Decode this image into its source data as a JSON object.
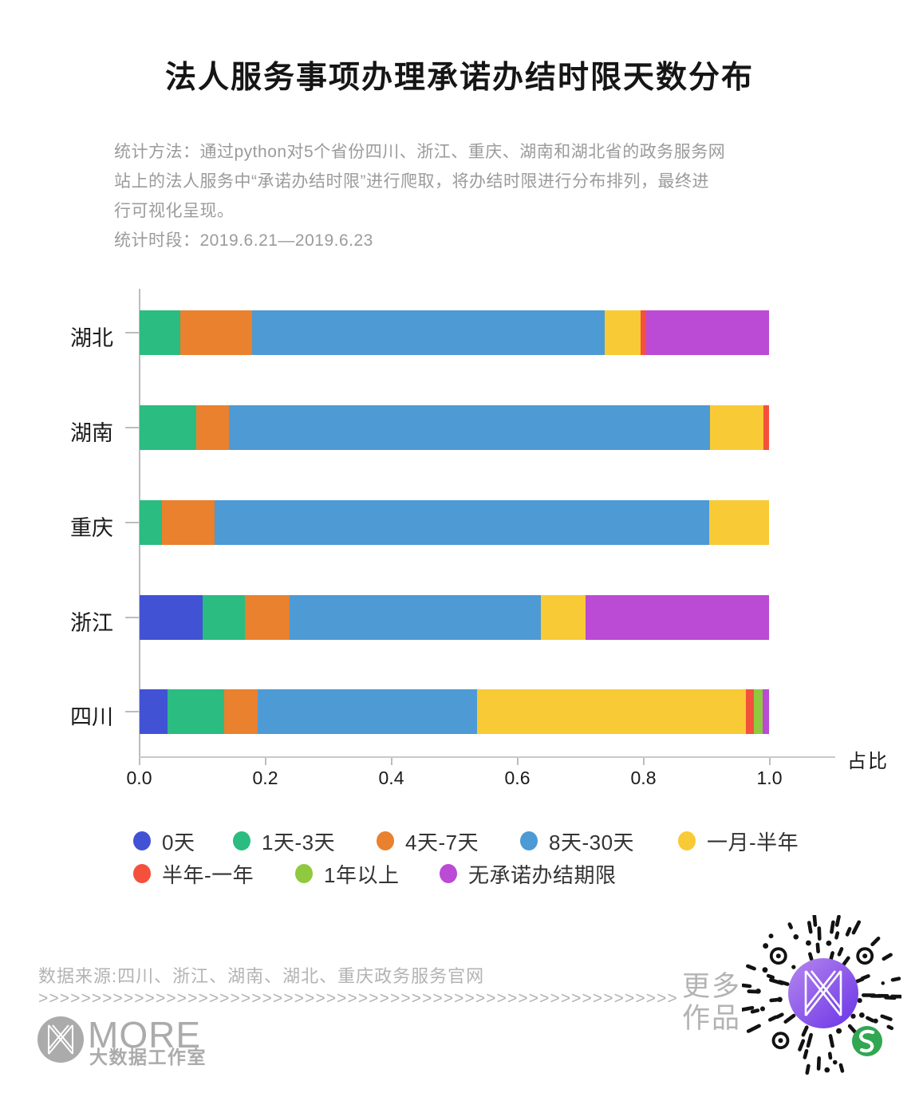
{
  "page": {
    "title": "法人服务事项办理承诺办结时限天数分布",
    "subtitle_lines": [
      "统计方法：通过python对5个省份四川、浙江、重庆、湖南和湖北省的政务服务网",
      "站上的法人服务中“承诺办结时限”进行爬取，将办结时限进行分布排列，最终进",
      "行可视化呈现。",
      "统计时段：2019.6.21—2019.6.23"
    ]
  },
  "chart_data": {
    "type": "bar",
    "orientation": "horizontal-stacked",
    "title": "法人服务事项办理承诺办结时限天数分布",
    "categories": [
      "湖北",
      "湖南",
      "重庆",
      "浙江",
      "四川"
    ],
    "series": [
      {
        "name": "0天",
        "color": "#4252d5",
        "values": [
          0,
          0,
          0,
          0.1,
          0.045
        ]
      },
      {
        "name": "1天-3天",
        "color": "#2abc80",
        "values": [
          0.065,
          0.09,
          0.036,
          0.068,
          0.09
        ]
      },
      {
        "name": "4天-7天",
        "color": "#e9812e",
        "values": [
          0.114,
          0.052,
          0.084,
          0.07,
          0.053
        ]
      },
      {
        "name": "8天-30天",
        "color": "#4d9ad5",
        "values": [
          0.56,
          0.764,
          0.785,
          0.399,
          0.348
        ]
      },
      {
        "name": "一月-半年",
        "color": "#f8ca35",
        "values": [
          0.056,
          0.085,
          0.095,
          0.071,
          0.427
        ]
      },
      {
        "name": "半年-一年",
        "color": "#f4503c",
        "values": [
          0.009,
          0.009,
          0,
          0,
          0.012
        ]
      },
      {
        "name": "1年以上",
        "color": "#8fc93f",
        "values": [
          0,
          0,
          0,
          0,
          0.014
        ]
      },
      {
        "name": "无承诺办结期限",
        "color": "#bb4ad4",
        "values": [
          0.196,
          0,
          0,
          0.292,
          0.011
        ]
      }
    ],
    "xlabel": "占比",
    "x_ticks": [
      "0.0",
      "0.2",
      "0.4",
      "0.6",
      "0.8",
      "1.0"
    ],
    "xlim": [
      0,
      1.0
    ],
    "grid": false,
    "legend_position": "bottom"
  },
  "footer": {
    "source": "数据来源:四川、浙江、湖南、湖北、重庆政务服务官网",
    "arrows": ">>>>>>>>>>>>>>>>>>>>>>>>>>>>>>>>>>>>>>>>>>>>>>>>>>>>>>>>>>>>",
    "more_line1": "更多",
    "more_line2": "作品",
    "logo_text": "MORE",
    "logo_subtext": "大数据工作室"
  }
}
